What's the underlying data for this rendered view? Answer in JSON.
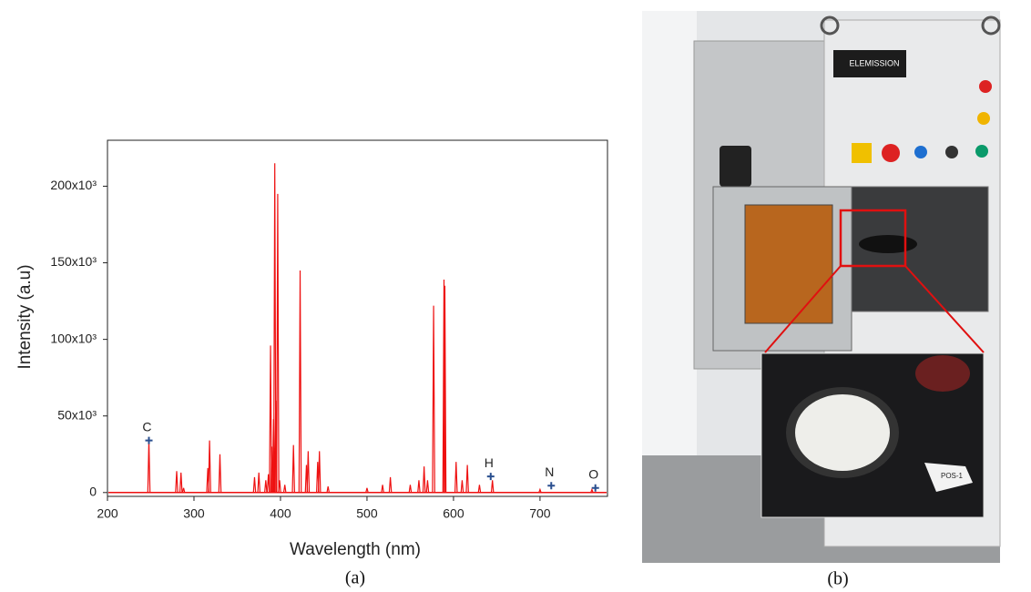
{
  "chart_data": {
    "type": "line",
    "xlabel": "Wavelength (nm)",
    "ylabel": "Intensity (a.u)",
    "color": "#ee1111",
    "x": [
      247.9,
      280,
      285,
      288,
      316,
      318,
      330,
      370,
      375,
      383,
      386,
      388.5,
      390,
      392,
      393.4,
      394.5,
      396.8,
      399,
      405,
      415,
      422.7,
      430,
      432,
      443,
      445,
      455,
      500,
      518,
      527,
      550,
      560,
      566,
      570,
      577,
      589,
      590,
      603,
      610,
      616,
      630,
      645,
      700,
      760
    ],
    "values": [
      34000,
      14000,
      13000,
      3000,
      16000,
      34000,
      25000,
      10000,
      13000,
      8000,
      12000,
      96000,
      30000,
      48000,
      215000,
      60000,
      195000,
      8000,
      5000,
      31000,
      145000,
      18000,
      27000,
      20000,
      27000,
      4000,
      3000,
      5000,
      10000,
      5000,
      8000,
      17000,
      8000,
      122000,
      139000,
      135000,
      20000,
      8000,
      18000,
      5000,
      8000,
      2000,
      2000
    ],
    "xlim": [
      200,
      778
    ],
    "ylim": [
      -2500,
      230000
    ],
    "xticks": [
      200,
      300,
      400,
      500,
      600,
      700
    ],
    "yticks": [
      0,
      {
        "value": 50000,
        "label": "50x10³"
      },
      {
        "value": 100000,
        "label": "100x10³"
      },
      {
        "value": 150000,
        "label": "150x10³"
      },
      {
        "value": 200000,
        "label": "200x10³"
      }
    ],
    "annotations": [
      {
        "label": "C",
        "x": 247.9,
        "y": 34000,
        "color": "#2a4f8f"
      },
      {
        "label": "H",
        "x": 643,
        "y": 10500,
        "color": "#2a4f8f"
      },
      {
        "label": "N",
        "x": 713,
        "y": 4500,
        "color": "#2a4f8f"
      },
      {
        "label": "O",
        "x": 764,
        "y": 3000,
        "color": "#2a4f8f"
      }
    ],
    "grid": false
  },
  "captions": [
    "(a)",
    "(b)"
  ],
  "photo": {
    "brand": "ELEMISSION",
    "sample_tag": "POS-1"
  }
}
